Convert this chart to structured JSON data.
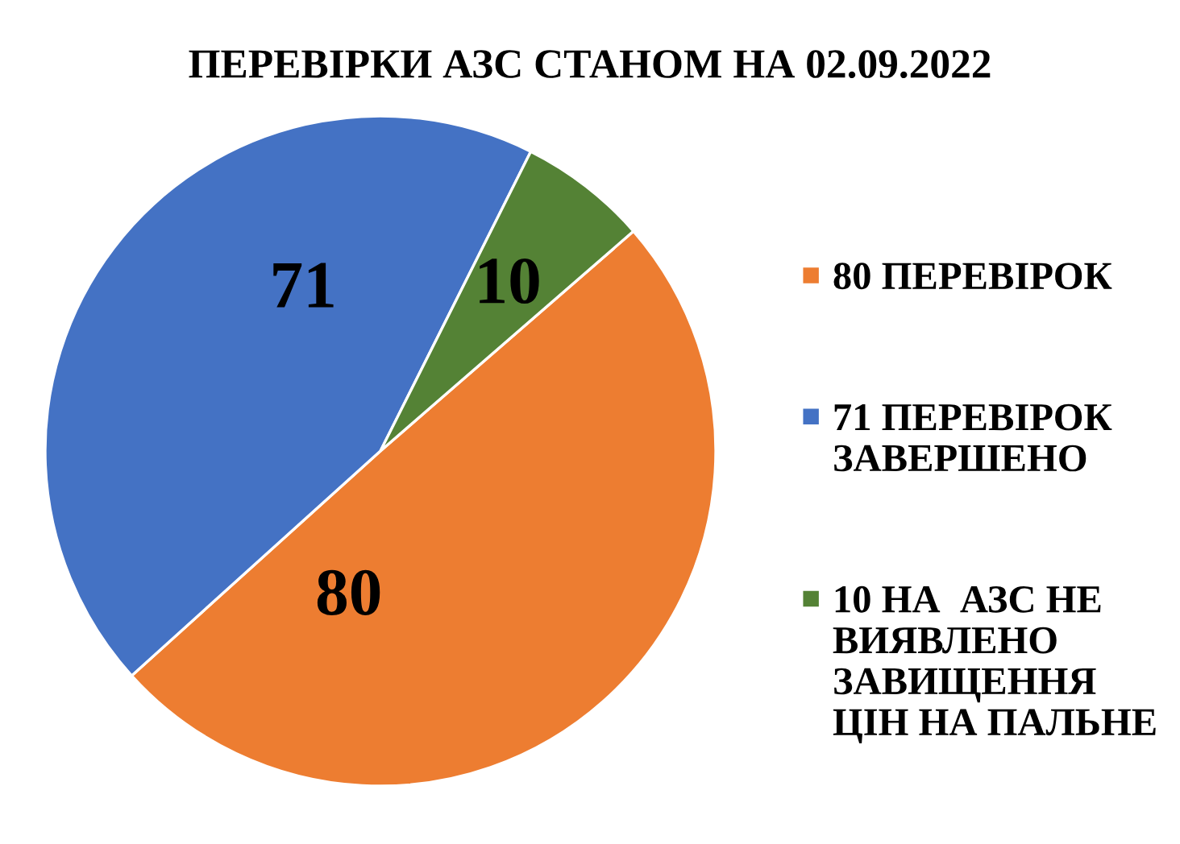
{
  "chart_data": {
    "type": "pie",
    "title": "ПЕРЕВІРКИ АЗС СТАНОМ НА 02.09.2022",
    "categories": [
      "80 ПЕРЕВІРОК",
      "71 ПЕРЕВІРОК\nЗАВЕРШЕНО",
      "10 НА  АЗС НЕ\nВИЯВЛЕНО\nЗАВИЩЕННЯ\nЦІН НА ПАЛЬНЕ"
    ],
    "values": [
      80,
      71,
      10
    ],
    "colors": [
      "#ed7d31",
      "#4472c4",
      "#548235"
    ],
    "data_labels": true,
    "legend": "right"
  }
}
